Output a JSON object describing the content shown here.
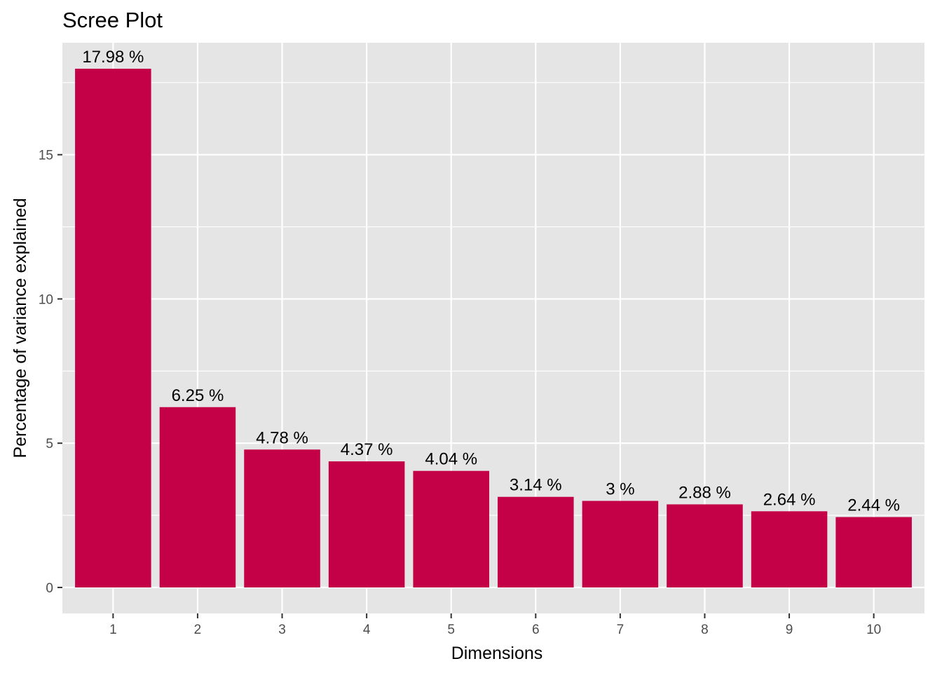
{
  "chart_data": {
    "type": "bar",
    "title": "Scree Plot",
    "xlabel": "Dimensions",
    "ylabel": "Percentage of variance explained",
    "categories": [
      "1",
      "2",
      "3",
      "4",
      "5",
      "6",
      "7",
      "8",
      "9",
      "10"
    ],
    "values": [
      17.98,
      6.25,
      4.78,
      4.37,
      4.04,
      3.14,
      3.0,
      2.88,
      2.64,
      2.44
    ],
    "data_labels": [
      "17.98 %",
      "6.25 %",
      "4.78 %",
      "4.37 %",
      "4.04 %",
      "3.14 %",
      "3 %",
      "2.88 %",
      "2.64 %",
      "2.44 %"
    ],
    "y_ticks": [
      0,
      5,
      10,
      15
    ],
    "y_tick_labels": [
      "0",
      "5",
      "10",
      "15"
    ],
    "ylim": [
      -0.9,
      18.88
    ],
    "grid": true,
    "legend": "none",
    "colors": {
      "bar": "#C40047",
      "panel_background": "#E5E5E5",
      "grid": "#FFFFFF"
    }
  }
}
